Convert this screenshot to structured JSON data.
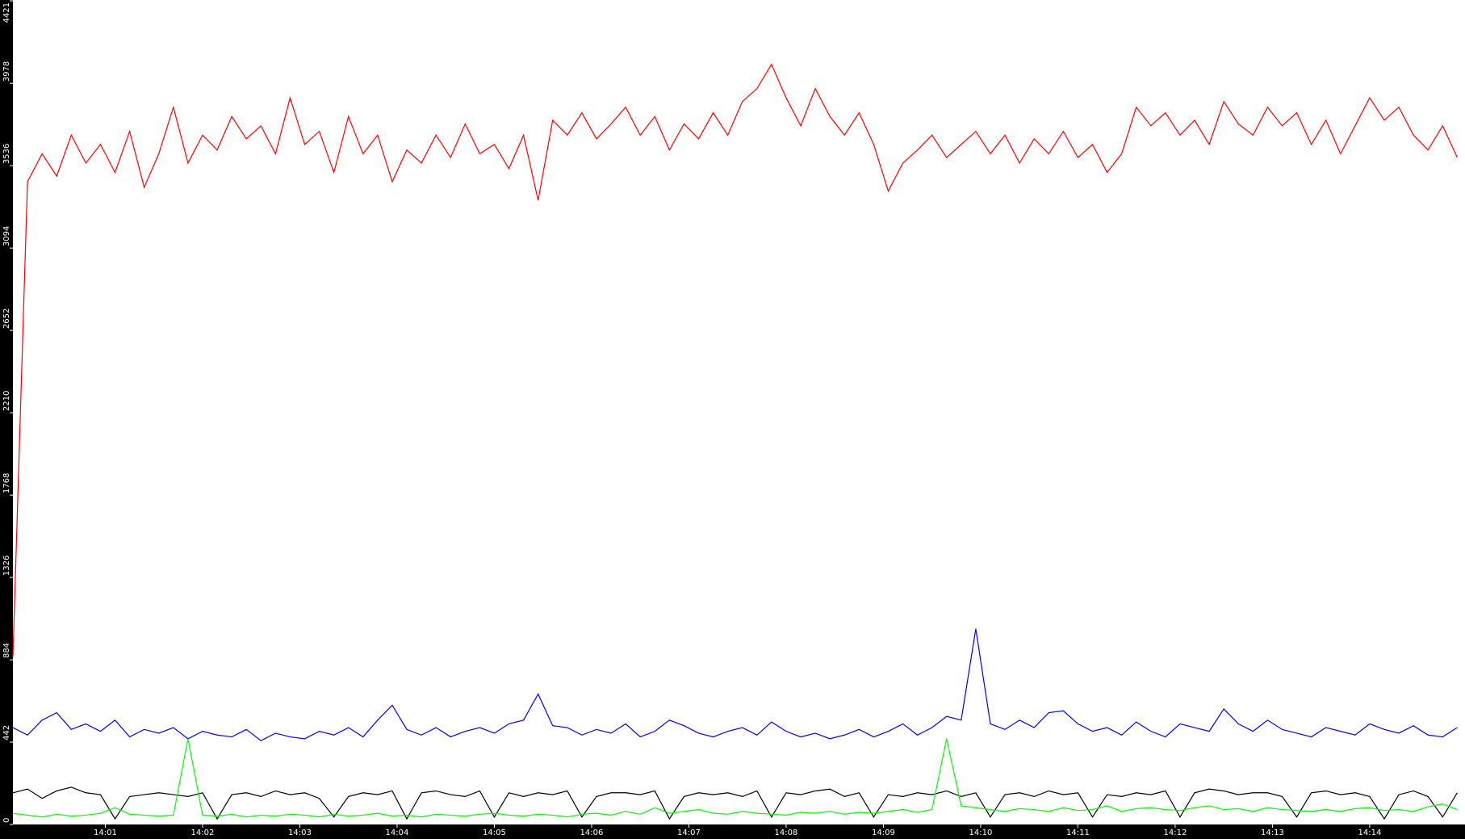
{
  "chart_data": {
    "type": "line",
    "x": [
      0.05,
      0.2,
      0.35,
      0.5,
      0.65,
      0.8,
      0.95,
      1.1,
      1.25,
      1.4,
      1.55,
      1.7,
      1.85,
      2,
      2.15,
      2.3,
      2.45,
      2.6,
      2.75,
      2.9,
      3.05,
      3.2,
      3.35,
      3.5,
      3.65,
      3.8,
      3.95,
      4.1,
      4.25,
      4.4,
      4.55,
      4.7,
      4.85,
      5,
      5.15,
      5.3,
      5.45,
      5.6,
      5.75,
      5.9,
      6.05,
      6.2,
      6.35,
      6.5,
      6.65,
      6.8,
      6.95,
      7.1,
      7.25,
      7.4,
      7.55,
      7.7,
      7.85,
      8,
      8.15,
      8.3,
      8.45,
      8.6,
      8.75,
      8.9,
      9.05,
      9.2,
      9.35,
      9.5,
      9.65,
      9.8,
      9.95,
      10.1,
      10.25,
      10.4,
      10.55,
      10.7,
      10.85,
      11,
      11.15,
      11.3,
      11.45,
      11.6,
      11.75,
      11.9,
      12.05,
      12.2,
      12.35,
      12.5,
      12.65,
      12.8,
      12.95,
      13.1,
      13.25,
      13.4,
      13.55,
      13.7,
      13.85,
      14,
      14.15,
      14.3,
      14.45,
      14.6,
      14.75,
      14.9
    ],
    "series": [
      {
        "color": "#ff0000",
        "values": [
          900,
          3450,
          3600,
          3480,
          3700,
          3550,
          3650,
          3500,
          3720,
          3420,
          3600,
          3850,
          3550,
          3700,
          3620,
          3800,
          3680,
          3750,
          3600,
          3900,
          3650,
          3720,
          3500,
          3800,
          3600,
          3700,
          3450,
          3620,
          3550,
          3700,
          3580,
          3760,
          3600,
          3650,
          3520,
          3700,
          3350,
          3780,
          3700,
          3820,
          3680,
          3760,
          3850,
          3700,
          3800,
          3620,
          3760,
          3680,
          3820,
          3700,
          3880,
          3950,
          4080,
          3900,
          3750,
          3950,
          3800,
          3700,
          3820,
          3650,
          3400,
          3550,
          3620,
          3700,
          3580,
          3650,
          3720,
          3600,
          3700,
          3550,
          3680,
          3600,
          3720,
          3580,
          3650,
          3500,
          3600,
          3850,
          3750,
          3820,
          3700,
          3780,
          3650,
          3880,
          3760,
          3700,
          3850,
          3750,
          3820,
          3650,
          3780,
          3600,
          3750,
          3900,
          3780,
          3850,
          3700,
          3620,
          3750,
          3580
        ]
      },
      {
        "color": "#0000ff",
        "values": [
          520,
          480,
          560,
          600,
          510,
          540,
          500,
          560,
          470,
          510,
          490,
          520,
          460,
          500,
          480,
          470,
          510,
          450,
          490,
          470,
          460,
          500,
          480,
          520,
          470,
          560,
          640,
          510,
          480,
          520,
          470,
          500,
          520,
          490,
          540,
          560,
          700,
          530,
          520,
          480,
          510,
          490,
          540,
          470,
          500,
          560,
          530,
          490,
          470,
          500,
          520,
          480,
          550,
          500,
          470,
          490,
          460,
          480,
          510,
          470,
          500,
          540,
          480,
          520,
          580,
          560,
          1050,
          540,
          510,
          560,
          520,
          600,
          610,
          540,
          500,
          520,
          480,
          550,
          500,
          470,
          540,
          520,
          500,
          620,
          540,
          500,
          560,
          510,
          490,
          470,
          520,
          500,
          480,
          540,
          510,
          490,
          530,
          480,
          470,
          520
        ]
      },
      {
        "color": "#000000",
        "values": [
          170,
          190,
          140,
          180,
          200,
          170,
          160,
          30,
          150,
          160,
          170,
          160,
          150,
          170,
          30,
          160,
          170,
          150,
          180,
          160,
          170,
          140,
          40,
          150,
          170,
          160,
          180,
          30,
          170,
          180,
          160,
          150,
          180,
          40,
          170,
          150,
          170,
          160,
          180,
          40,
          150,
          170,
          170,
          160,
          180,
          30,
          150,
          170,
          160,
          170,
          150,
          180,
          40,
          170,
          160,
          180,
          190,
          150,
          170,
          40,
          160,
          150,
          170,
          160,
          180,
          150,
          170,
          40,
          160,
          170,
          150,
          180,
          160,
          170,
          40,
          160,
          150,
          170,
          160,
          180,
          40,
          170,
          190,
          180,
          160,
          170,
          170,
          150,
          40,
          170,
          180,
          160,
          170,
          150,
          30,
          160,
          180,
          150,
          40,
          170
        ]
      },
      {
        "color": "#00ff00",
        "values": [
          60,
          50,
          40,
          55,
          45,
          50,
          60,
          90,
          55,
          50,
          45,
          50,
          460,
          50,
          45,
          55,
          40,
          50,
          45,
          55,
          50,
          40,
          55,
          45,
          50,
          60,
          45,
          50,
          40,
          55,
          50,
          45,
          55,
          60,
          50,
          45,
          55,
          50,
          40,
          55,
          60,
          50,
          70,
          55,
          90,
          60,
          70,
          80,
          60,
          55,
          70,
          60,
          55,
          50,
          65,
          60,
          70,
          55,
          65,
          60,
          70,
          80,
          65,
          80,
          460,
          100,
          90,
          80,
          70,
          85,
          80,
          70,
          90,
          75,
          80,
          100,
          70,
          85,
          90,
          80,
          75,
          90,
          100,
          80,
          85,
          70,
          90,
          80,
          75,
          70,
          80,
          70,
          85,
          90,
          75,
          80,
          70,
          95,
          110,
          80
        ]
      }
    ],
    "xlim": [
      0.05,
      14.98
    ],
    "xticks": [
      {
        "value": 1,
        "label": "14:01"
      },
      {
        "value": 2,
        "label": "14:02"
      },
      {
        "value": 3,
        "label": "14:03"
      },
      {
        "value": 4,
        "label": "14:04"
      },
      {
        "value": 5,
        "label": "14:05"
      },
      {
        "value": 6,
        "label": "14:06"
      },
      {
        "value": 7,
        "label": "14:07"
      },
      {
        "value": 8,
        "label": "14:08"
      },
      {
        "value": 9,
        "label": "14:09"
      },
      {
        "value": 10,
        "label": "14:10"
      },
      {
        "value": 11,
        "label": "14:11"
      },
      {
        "value": 12,
        "label": "14:12"
      },
      {
        "value": 13,
        "label": "14:13"
      },
      {
        "value": 14,
        "label": "14:14"
      }
    ],
    "ylim": [
      0,
      4421
    ],
    "yticks": [
      0,
      442,
      884,
      1326,
      1768,
      2210,
      2652,
      3094,
      3536,
      3978,
      4421
    ],
    "grid": false
  }
}
